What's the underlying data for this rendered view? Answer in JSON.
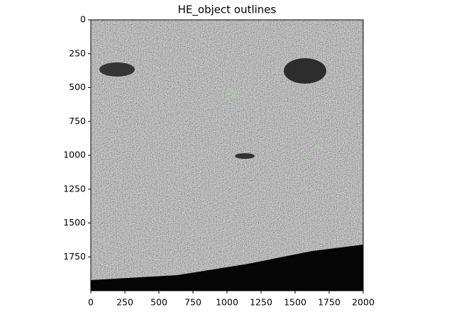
{
  "chart_data": {
    "type": "image",
    "title": "HE_object outlines",
    "xlim": [
      0,
      2000
    ],
    "xticks": [
      0,
      250,
      500,
      750,
      1000,
      1250,
      1500,
      1750,
      2000
    ],
    "ylim": [
      2000,
      0
    ],
    "yticks": [
      0,
      250,
      500,
      750,
      1000,
      1250,
      1500,
      1750
    ]
  }
}
